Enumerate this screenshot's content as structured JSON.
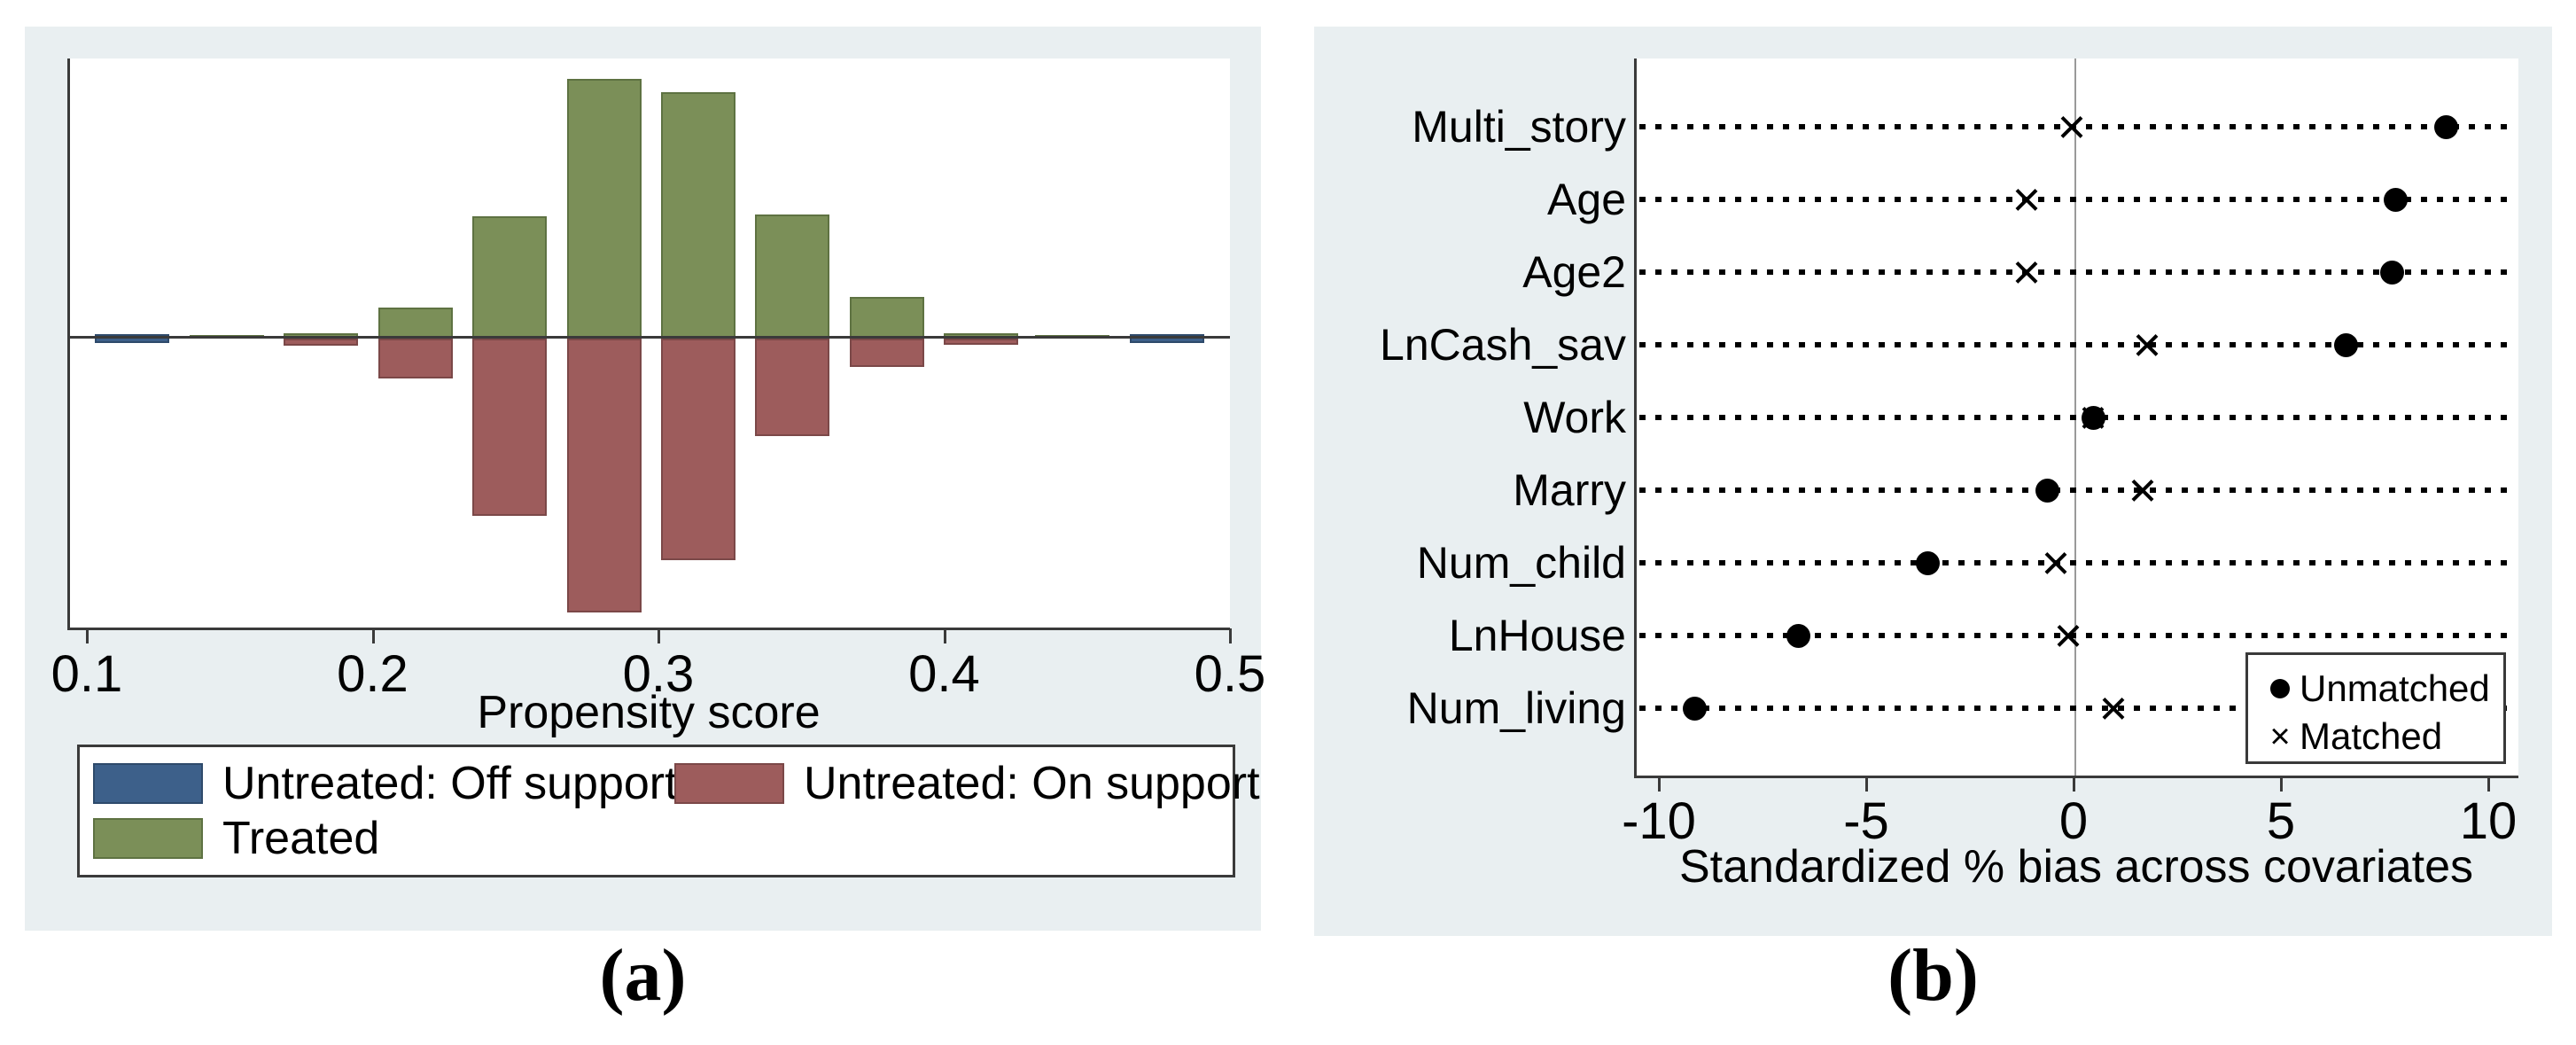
{
  "page": {
    "background": "#ffffff",
    "panel_background": "#e9eff1"
  },
  "chart_data": [
    {
      "type": "bar",
      "subtype": "mirrored-histogram",
      "caption": "(a)",
      "title": "",
      "xlabel": "Propensity score",
      "ylabel": "",
      "xlim": [
        0.1,
        0.5
      ],
      "x_ticks": [
        "0.1",
        "0.2",
        "0.3",
        "0.4",
        "0.5"
      ],
      "x_tick_values": [
        0.1,
        0.2,
        0.3,
        0.4,
        0.5
      ],
      "grid": false,
      "legend_position": "below plot, boxed",
      "bin_width": 0.033,
      "bin_centers": [
        0.115,
        0.148,
        0.181,
        0.214,
        0.247,
        0.28,
        0.313,
        0.346,
        0.379,
        0.412,
        0.444,
        0.477
      ],
      "series": [
        {
          "name": "Treated",
          "direction": "up",
          "values": [
            0,
            1.4,
            2.0,
            11.9,
            47.1,
            100,
            94.9,
            47.8,
            16.0,
            2.0,
            1.4,
            0
          ]
        },
        {
          "name": "Untreated: On support",
          "direction": "down",
          "values": [
            0,
            0,
            2.7,
            15.4,
            68.3,
            105.5,
            85.3,
            37.5,
            10.9,
            2.4,
            0,
            0
          ]
        },
        {
          "name": "Untreated: Off support",
          "direction": "on-axis",
          "values": [
            2.5,
            0,
            0,
            0,
            0,
            0,
            0,
            0,
            0,
            0,
            0,
            2.5
          ]
        }
      ],
      "values_unit": "relative frequency (percent of tallest treated bin)",
      "legend": [
        {
          "label": "Untreated: Off support",
          "color": "#3d608a",
          "edge": "#2e4a6b"
        },
        {
          "label": "Untreated: On support",
          "color": "#9d5c5c",
          "edge": "#7b4848"
        },
        {
          "label": "Treated",
          "color": "#7b8f58",
          "edge": "#5e7242"
        }
      ],
      "axis_color": "#3a3a3a"
    },
    {
      "type": "scatter",
      "subtype": "covariate-balance-dot-plot",
      "caption": "(b)",
      "title": "",
      "xlabel": "Standardized % bias across covariates",
      "ylabel": "",
      "xlim": [
        -10.8,
        10.7
      ],
      "x_ticks": [
        "-10",
        "-5",
        "0",
        "5",
        "10"
      ],
      "x_tick_values": [
        -10,
        -5,
        0,
        5,
        10
      ],
      "grid": "dotted horizontal guide per category",
      "zero_reference_line": true,
      "categories": [
        "Multi_story",
        "Age",
        "Age2",
        "LnCash_sav",
        "Work",
        "Marry",
        "Num_child",
        "LnHouse",
        "Num_living"
      ],
      "series": [
        {
          "name": "Unmatched",
          "marker": "filled-circle",
          "values": [
            8.9,
            7.7,
            7.6,
            6.5,
            0.4,
            -0.7,
            -3.6,
            -6.7,
            -9.2
          ]
        },
        {
          "name": "Matched",
          "marker": "x",
          "values": [
            -0.1,
            -1.2,
            -1.2,
            1.7,
            0.4,
            1.6,
            -0.5,
            -0.2,
            0.9
          ]
        }
      ],
      "marker_color": "#000000",
      "legend_position": "inside lower right, boxed",
      "x_glyph": "×",
      "axis_color": "#3a3a3a"
    }
  ]
}
